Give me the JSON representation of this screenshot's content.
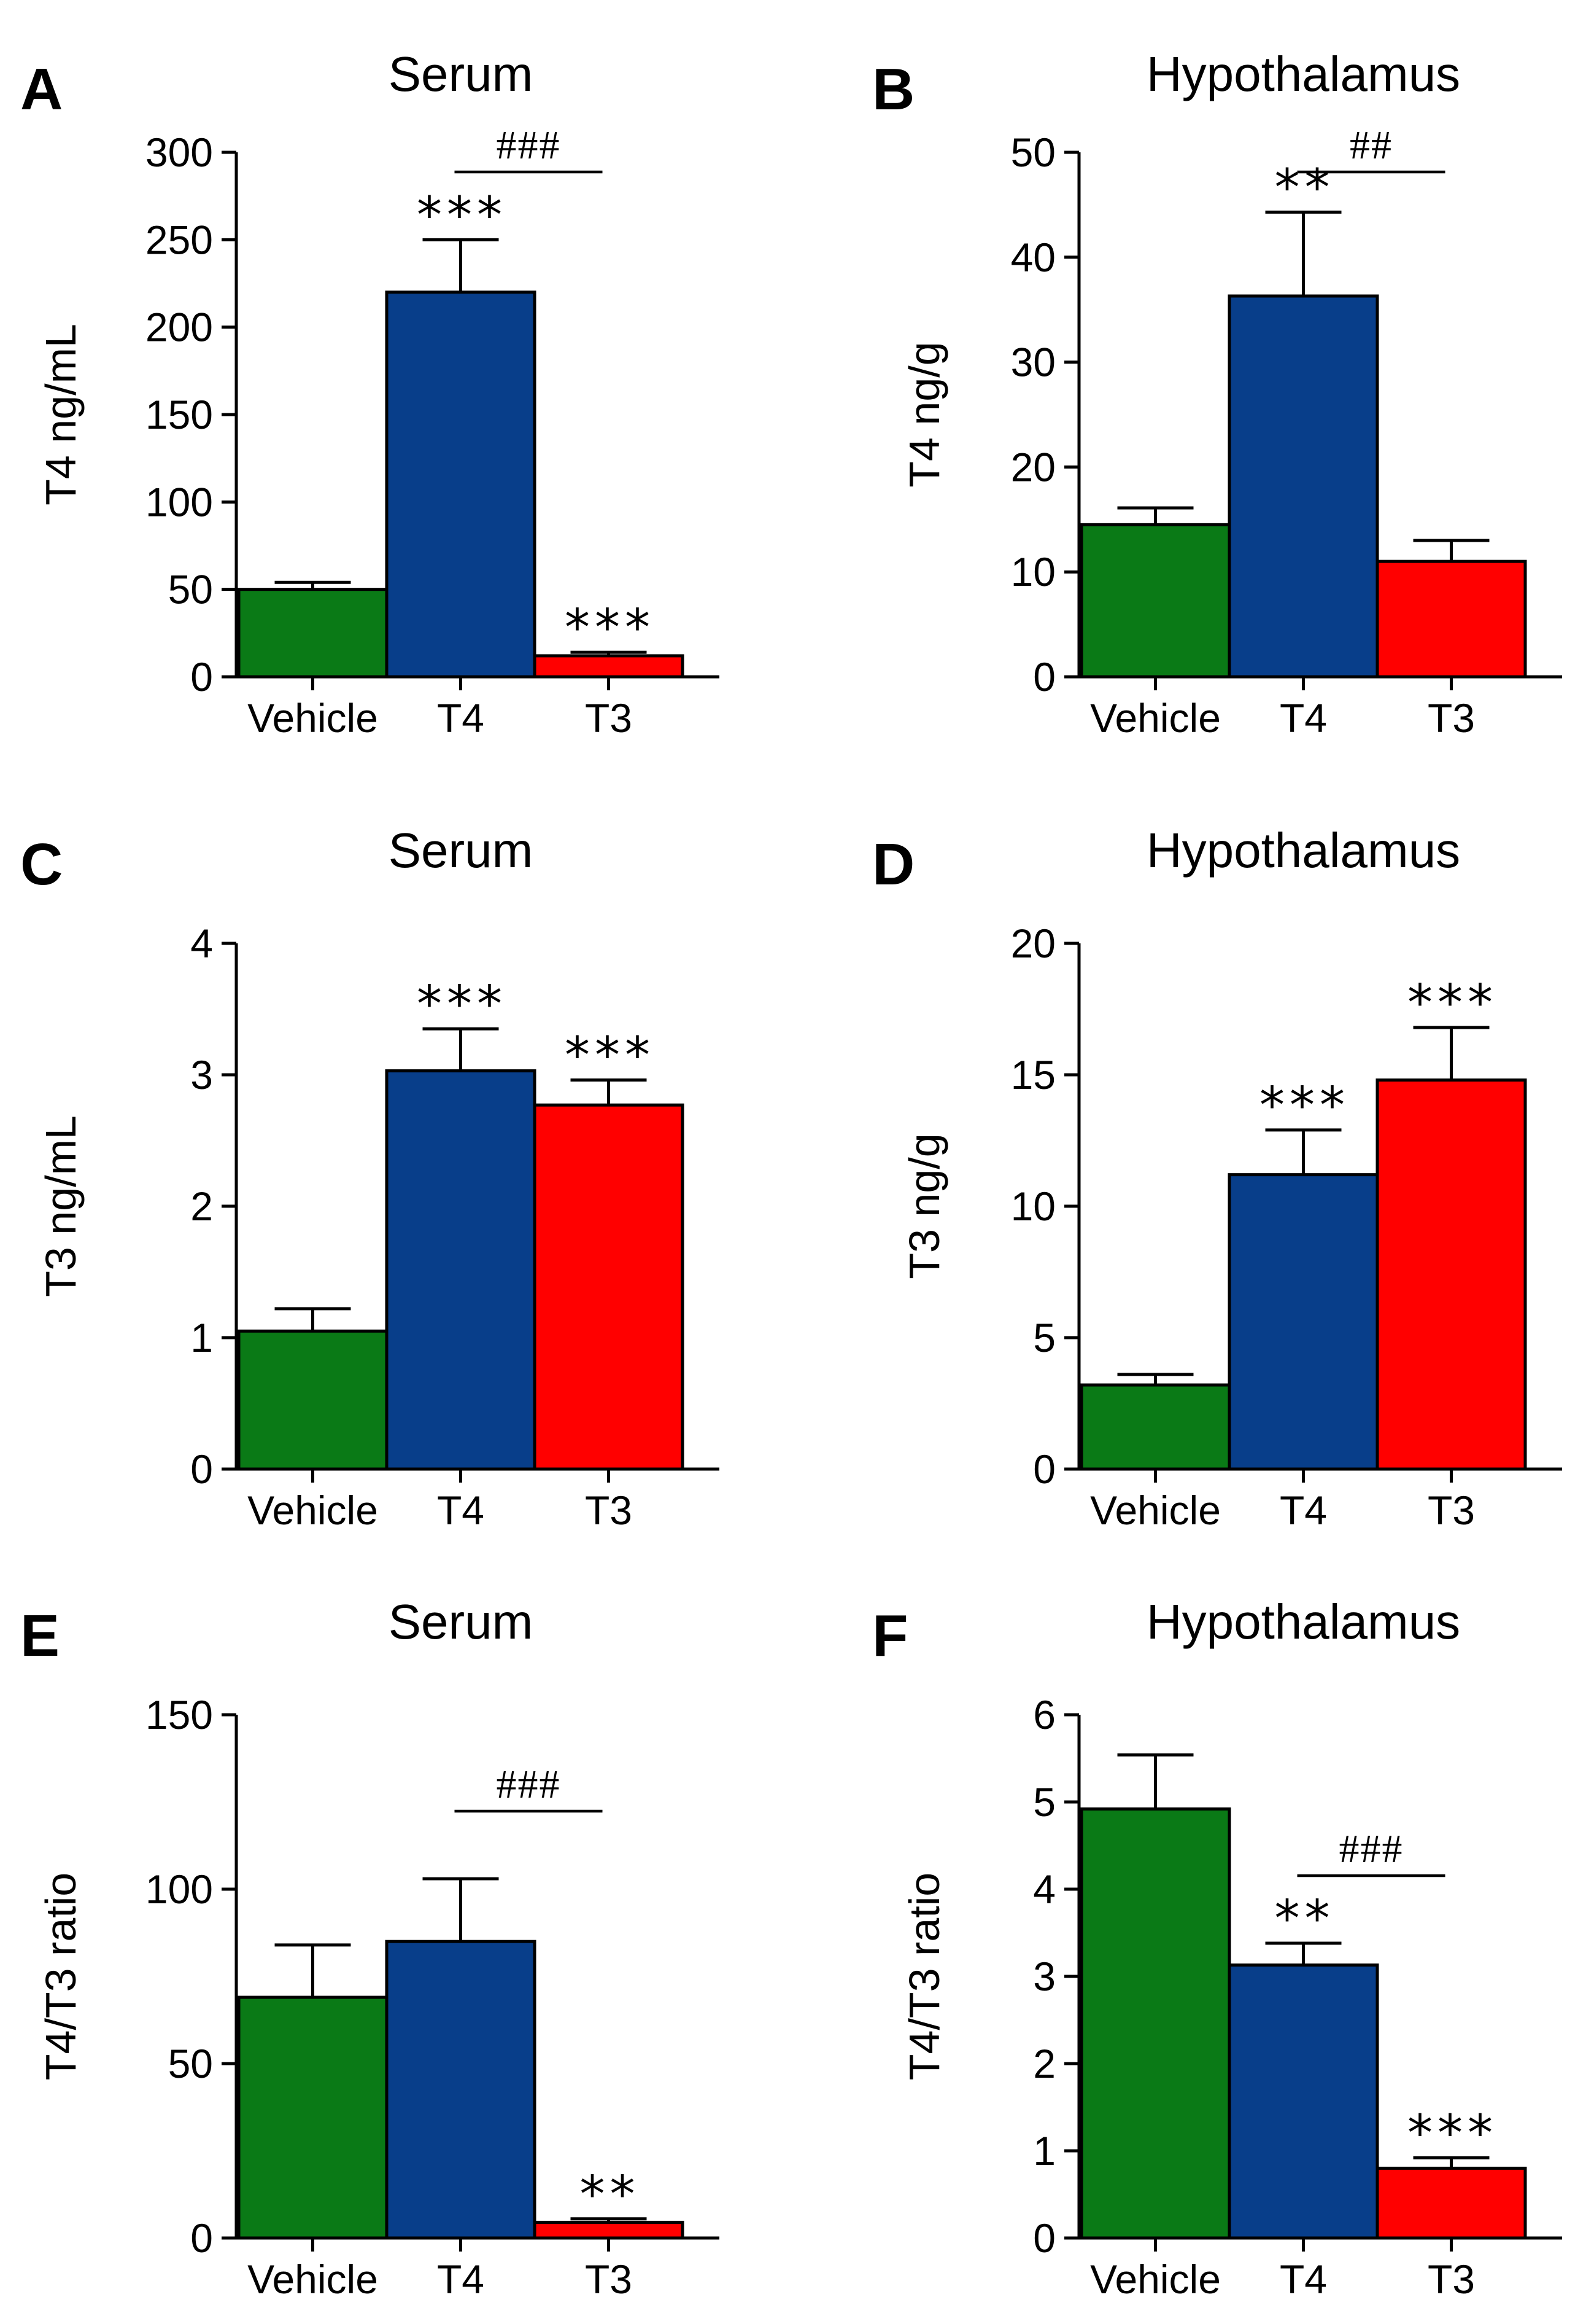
{
  "chart_data": [
    {
      "panel": "A",
      "type": "bar",
      "title": "Serum",
      "ylabel": "T4 ng/mL",
      "xlabel": "",
      "categories": [
        "Vehicle",
        "T4",
        "T3"
      ],
      "values": [
        50,
        220,
        12
      ],
      "errors": [
        4,
        30,
        2
      ],
      "colors": [
        "#0a7a16",
        "#083e8a",
        "#ff0000"
      ],
      "ylim": [
        0,
        300
      ],
      "yticks": [
        0,
        50,
        100,
        150,
        200,
        250,
        300
      ],
      "significance": [
        "",
        "***",
        "***"
      ],
      "comparison": {
        "from": 1,
        "to": 2,
        "label": "###"
      },
      "grid": false,
      "legend": "none"
    },
    {
      "panel": "B",
      "type": "bar",
      "title": "Hypothalamus",
      "ylabel": "T4 ng/g",
      "xlabel": "",
      "categories": [
        "Vehicle",
        "T4",
        "T3"
      ],
      "values": [
        14.5,
        36.3,
        11
      ],
      "errors": [
        1.6,
        8,
        2
      ],
      "colors": [
        "#0a7a16",
        "#083e8a",
        "#ff0000"
      ],
      "ylim": [
        0,
        50
      ],
      "yticks": [
        0,
        10,
        20,
        30,
        40,
        50
      ],
      "significance": [
        "",
        "**",
        ""
      ],
      "comparison": {
        "from": 1,
        "to": 2,
        "label": "##"
      },
      "grid": false,
      "legend": "none"
    },
    {
      "panel": "C",
      "type": "bar",
      "title": "Serum",
      "ylabel": "T3 ng/mL",
      "xlabel": "",
      "categories": [
        "Vehicle",
        "T4",
        "T3"
      ],
      "values": [
        1.05,
        3.03,
        2.77
      ],
      "errors": [
        0.17,
        0.32,
        0.19
      ],
      "colors": [
        "#0a7a16",
        "#083e8a",
        "#ff0000"
      ],
      "ylim": [
        0,
        4
      ],
      "yticks": [
        0,
        1,
        2,
        3,
        4
      ],
      "significance": [
        "",
        "***",
        "***"
      ],
      "comparison": null,
      "grid": false,
      "legend": "none"
    },
    {
      "panel": "D",
      "type": "bar",
      "title": "Hypothalamus",
      "ylabel": "T3 ng/g",
      "xlabel": "",
      "categories": [
        "Vehicle",
        "T4",
        "T3"
      ],
      "values": [
        3.2,
        11.2,
        14.8
      ],
      "errors": [
        0.4,
        1.7,
        2
      ],
      "colors": [
        "#0a7a16",
        "#083e8a",
        "#ff0000"
      ],
      "ylim": [
        0,
        20
      ],
      "yticks": [
        0,
        5,
        10,
        15,
        20
      ],
      "significance": [
        "",
        "***",
        "***"
      ],
      "comparison": null,
      "grid": false,
      "legend": "none"
    },
    {
      "panel": "E",
      "type": "bar",
      "title": "Serum",
      "ylabel": "T4/T3 ratio",
      "xlabel": "",
      "categories": [
        "Vehicle",
        "T4",
        "T3"
      ],
      "values": [
        69,
        85,
        4.5
      ],
      "errors": [
        15,
        18,
        1
      ],
      "colors": [
        "#0a7a16",
        "#083e8a",
        "#ff0000"
      ],
      "ylim": [
        0,
        150
      ],
      "yticks": [
        0,
        50,
        100,
        150
      ],
      "significance": [
        "",
        "",
        "**"
      ],
      "comparison": {
        "from": 1,
        "to": 2,
        "label": "###"
      },
      "grid": false,
      "legend": "none"
    },
    {
      "panel": "F",
      "type": "bar",
      "title": "Hypothalamus",
      "ylabel": "T4/T3 ratio",
      "xlabel": "",
      "categories": [
        "Vehicle",
        "T4",
        "T3"
      ],
      "values": [
        4.92,
        3.13,
        0.8
      ],
      "errors": [
        0.62,
        0.25,
        0.12
      ],
      "colors": [
        "#0a7a16",
        "#083e8a",
        "#ff0000"
      ],
      "ylim": [
        0,
        6
      ],
      "yticks": [
        0,
        1,
        2,
        3,
        4,
        5,
        6
      ],
      "significance": [
        "",
        "**",
        "***"
      ],
      "comparison": {
        "from": 1,
        "to": 2,
        "label": "###"
      },
      "grid": false,
      "legend": "none"
    }
  ]
}
